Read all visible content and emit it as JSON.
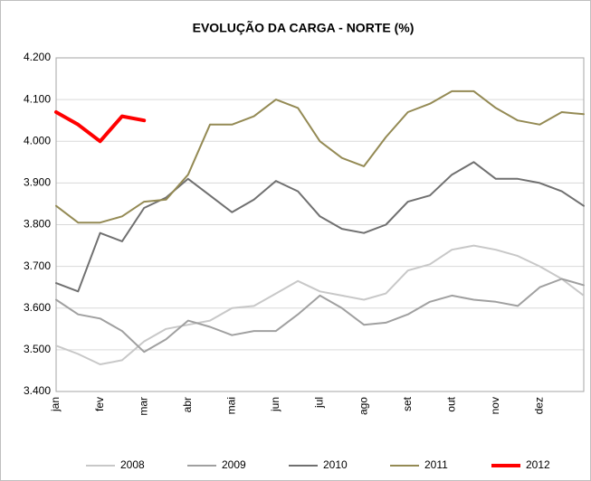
{
  "chart_data": {
    "type": "line",
    "title": "EVOLUÇÃO DA CARGA - NORTE (%)",
    "categories": [
      "jan",
      null,
      "fev",
      null,
      "mar",
      null,
      "abr",
      null,
      "mai",
      null,
      "jun",
      null,
      "jul",
      null,
      "ago",
      null,
      "set",
      null,
      "out",
      null,
      "nov",
      null,
      "dez",
      null,
      null
    ],
    "series": [
      {
        "name": "2008",
        "color": "#c8c8c8",
        "values": [
          3510,
          3490,
          3465,
          3475,
          3520,
          3550,
          3560,
          3570,
          3600,
          3605,
          3635,
          3665,
          3640,
          3630,
          3620,
          3635,
          3690,
          3705,
          3740,
          3750,
          3740,
          3725,
          3700,
          3670,
          3630
        ]
      },
      {
        "name": "2009",
        "color": "#a0a0a0",
        "values": [
          3620,
          3585,
          3575,
          3545,
          3495,
          3525,
          3570,
          3555,
          3535,
          3545,
          3545,
          3585,
          3630,
          3600,
          3560,
          3565,
          3585,
          3615,
          3630,
          3620,
          3615,
          3605,
          3650,
          3670,
          3655
        ]
      },
      {
        "name": "2010",
        "color": "#707070",
        "values": [
          3660,
          3640,
          3780,
          3760,
          3840,
          3865,
          3910,
          3870,
          3830,
          3860,
          3905,
          3880,
          3820,
          3790,
          3780,
          3800,
          3855,
          3870,
          3920,
          3950,
          3910,
          3910,
          3900,
          3880,
          3845
        ]
      },
      {
        "name": "2011",
        "color": "#948a54",
        "values": [
          3845,
          3805,
          3805,
          3820,
          3855,
          3860,
          3920,
          4040,
          4040,
          4060,
          4100,
          4080,
          4000,
          3960,
          3940,
          4010,
          4070,
          4090,
          4120,
          4120,
          4080,
          4050,
          4040,
          4070,
          4065
        ]
      },
      {
        "name": "2012",
        "color": "#ff0000",
        "values": [
          4070,
          4040,
          4000,
          4060,
          4050,
          null,
          null,
          null,
          null,
          null,
          null,
          null,
          null,
          null,
          null,
          null,
          null,
          null,
          null,
          null,
          null,
          null,
          null,
          null,
          null
        ]
      }
    ],
    "ylim": [
      3400,
      4200
    ],
    "yticks": [
      {
        "value": 3400,
        "label": "3.400"
      },
      {
        "value": 3500,
        "label": "3.500"
      },
      {
        "value": 3600,
        "label": "3.600"
      },
      {
        "value": 3700,
        "label": "3.700"
      },
      {
        "value": 3800,
        "label": "3.800"
      },
      {
        "value": 3900,
        "label": "3.900"
      },
      {
        "value": 4000,
        "label": "4.000"
      },
      {
        "value": 4100,
        "label": "4.100"
      },
      {
        "value": 4200,
        "label": "4.200"
      }
    ],
    "grid": true
  }
}
